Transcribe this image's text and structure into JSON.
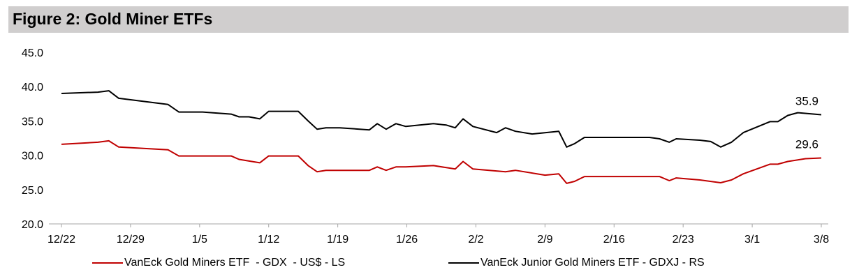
{
  "chart_data": {
    "type": "line",
    "title": "Figure 2: Gold Miner ETFs",
    "xlabel": "",
    "ylabel": "",
    "ylim": [
      20,
      45
    ],
    "xlim": [
      0,
      77
    ],
    "yticks": [
      "20.0",
      "25.0",
      "30.0",
      "35.0",
      "40.0",
      "45.0"
    ],
    "xticks": [
      {
        "day": 0,
        "label": "12/22"
      },
      {
        "day": 7,
        "label": "12/29"
      },
      {
        "day": 14,
        "label": "1/5"
      },
      {
        "day": 21,
        "label": "1/12"
      },
      {
        "day": 28,
        "label": "1/19"
      },
      {
        "day": 35,
        "label": "1/26"
      },
      {
        "day": 42,
        "label": "2/2"
      },
      {
        "day": 49,
        "label": "2/9"
      },
      {
        "day": 56,
        "label": "2/16"
      },
      {
        "day": 63,
        "label": "2/23"
      },
      {
        "day": 70,
        "label": "3/1"
      },
      {
        "day": 77,
        "label": "3/8"
      }
    ],
    "grid": false,
    "legend_position": "bottom",
    "series": [
      {
        "name": "VanEck Gold Miners ETF  - GDX  - US$ - LS",
        "color": "#c00000",
        "end_label": "29.6",
        "points": [
          [
            0,
            31.6
          ],
          [
            3.7,
            31.9
          ],
          [
            4.8,
            32.1
          ],
          [
            5.8,
            31.2
          ],
          [
            10.8,
            30.8
          ],
          [
            11.9,
            29.9
          ],
          [
            17.2,
            29.9
          ],
          [
            18,
            29.4
          ],
          [
            20.1,
            28.9
          ],
          [
            21,
            29.9
          ],
          [
            24,
            29.9
          ],
          [
            25,
            28.5
          ],
          [
            25.9,
            27.6
          ],
          [
            26.8,
            27.8
          ],
          [
            31.2,
            27.8
          ],
          [
            32,
            28.3
          ],
          [
            32.9,
            27.8
          ],
          [
            33.9,
            28.3
          ],
          [
            34.9,
            28.3
          ],
          [
            37.7,
            28.5
          ],
          [
            39.9,
            28.0
          ],
          [
            40.7,
            29.1
          ],
          [
            41.7,
            28.0
          ],
          [
            45,
            27.6
          ],
          [
            46,
            27.8
          ],
          [
            49,
            27.1
          ],
          [
            50.4,
            27.3
          ],
          [
            51.2,
            25.9
          ],
          [
            52,
            26.2
          ],
          [
            53,
            26.9
          ],
          [
            57.6,
            26.9
          ],
          [
            60.6,
            26.9
          ],
          [
            61.6,
            26.3
          ],
          [
            62.3,
            26.7
          ],
          [
            64.7,
            26.4
          ],
          [
            66.8,
            26.0
          ],
          [
            67.9,
            26.4
          ],
          [
            69.1,
            27.3
          ],
          [
            71.8,
            28.7
          ],
          [
            72.6,
            28.7
          ],
          [
            73.6,
            29.1
          ],
          [
            75.4,
            29.5
          ],
          [
            77,
            29.6
          ]
        ]
      },
      {
        "name": "VanEck Junior Gold Miners ETF - GDXJ - RS",
        "color": "#000000",
        "end_label": "35.9",
        "points": [
          [
            0,
            39.0
          ],
          [
            3.7,
            39.2
          ],
          [
            4.8,
            39.4
          ],
          [
            5.8,
            38.3
          ],
          [
            10.8,
            37.4
          ],
          [
            11.9,
            36.3
          ],
          [
            14.3,
            36.3
          ],
          [
            17.2,
            36.0
          ],
          [
            18,
            35.6
          ],
          [
            19,
            35.6
          ],
          [
            20.1,
            35.3
          ],
          [
            21,
            36.4
          ],
          [
            24,
            36.4
          ],
          [
            25,
            35.0
          ],
          [
            25.9,
            33.8
          ],
          [
            26.8,
            34.0
          ],
          [
            28.2,
            34.0
          ],
          [
            31.2,
            33.7
          ],
          [
            32,
            34.6
          ],
          [
            32.9,
            33.8
          ],
          [
            33.9,
            34.6
          ],
          [
            34.9,
            34.2
          ],
          [
            37.7,
            34.6
          ],
          [
            39,
            34.4
          ],
          [
            39.9,
            34.0
          ],
          [
            40.7,
            35.3
          ],
          [
            41.7,
            34.2
          ],
          [
            44.1,
            33.3
          ],
          [
            45,
            34.0
          ],
          [
            46,
            33.5
          ],
          [
            47.7,
            33.1
          ],
          [
            50.4,
            33.5
          ],
          [
            51.2,
            31.2
          ],
          [
            52,
            31.7
          ],
          [
            53,
            32.6
          ],
          [
            57.6,
            32.6
          ],
          [
            59.6,
            32.6
          ],
          [
            60.6,
            32.4
          ],
          [
            61.6,
            31.9
          ],
          [
            62.3,
            32.4
          ],
          [
            64.7,
            32.2
          ],
          [
            65.8,
            32.0
          ],
          [
            66.8,
            31.2
          ],
          [
            67.9,
            31.9
          ],
          [
            69.1,
            33.3
          ],
          [
            71.8,
            34.9
          ],
          [
            72.6,
            34.9
          ],
          [
            73.6,
            35.8
          ],
          [
            74.6,
            36.2
          ],
          [
            77,
            35.9
          ]
        ]
      }
    ]
  }
}
